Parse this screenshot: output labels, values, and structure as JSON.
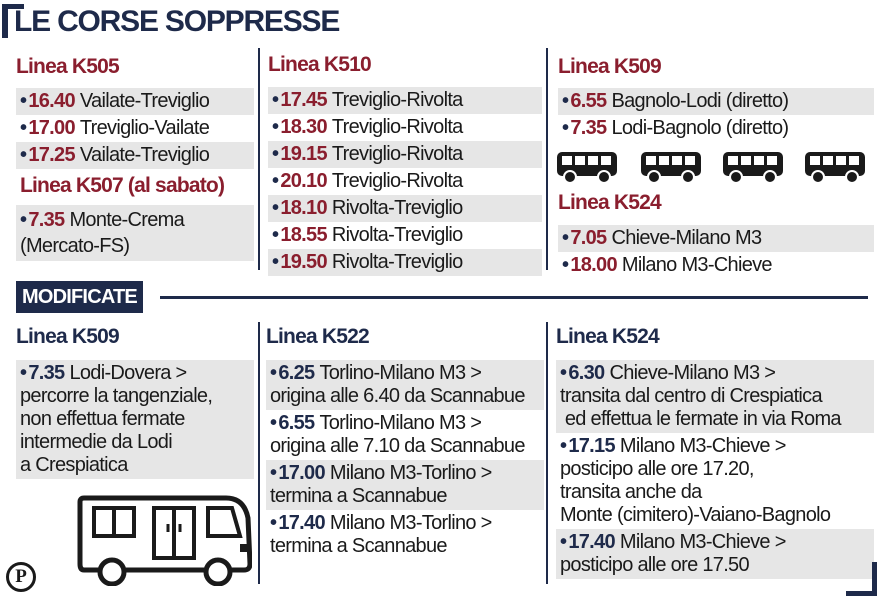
{
  "title": "LE CORSE SOPPRESSE",
  "colors": {
    "accent": "#8a1e2e",
    "navy": "#1e2a4a",
    "shade": "#e6e6e6"
  },
  "soppresse": {
    "k505": {
      "title": "Linea K505",
      "rows": [
        {
          "time": "16.40",
          "route": "Vailate-Treviglio"
        },
        {
          "time": "17.00",
          "route": "Treviglio-Vailate"
        },
        {
          "time": "17.25",
          "route": "Vailate-Treviglio"
        }
      ]
    },
    "k507": {
      "title": "Linea K507 (al sabato)",
      "time": "7.35",
      "route_line1": "Monte-Crema",
      "route_line2": "(Mercato-FS)"
    },
    "k510": {
      "title": "Linea K510",
      "rows": [
        {
          "time": "17.45",
          "route": "Treviglio-Rivolta"
        },
        {
          "time": "18.30",
          "route": "Treviglio-Rivolta"
        },
        {
          "time": "19.15",
          "route": "Treviglio-Rivolta"
        },
        {
          "time": "20.10",
          "route": "Treviglio-Rivolta"
        },
        {
          "time": "18.10",
          "route": "Rivolta-Treviglio"
        },
        {
          "time": "18.55",
          "route": "Rivolta-Treviglio"
        },
        {
          "time": "19.50",
          "route": "Rivolta-Treviglio"
        }
      ]
    },
    "k509": {
      "title": "Linea K509",
      "rows": [
        {
          "time": "6.55",
          "route": "Bagnolo-Lodi (diretto)"
        },
        {
          "time": "7.35",
          "route": "Lodi-Bagnolo (diretto)"
        }
      ]
    },
    "k524": {
      "title": "Linea K524",
      "rows": [
        {
          "time": "7.05",
          "route": "Chieve-Milano M3"
        },
        {
          "time": "18.00",
          "route": "Milano M3-Chieve"
        }
      ]
    }
  },
  "modificate_label": "MODIFICATE",
  "modificate": {
    "k509": {
      "title": "Linea K509",
      "time": "7.35",
      "lines": [
        "Lodi-Dovera >",
        "percorre la tangenziale,",
        "non effettua fermate",
        "intermedie da Lodi",
        "a Crespiatica"
      ]
    },
    "k522": {
      "title": "Linea K522",
      "entries": [
        {
          "time": "6.25",
          "l1": "Torlino-Milano M3 >",
          "l2": "origina alle 6.40 da Scannabue"
        },
        {
          "time": "6.55",
          "l1": "Torlino-Milano M3 >",
          "l2": "origina alle 7.10 da Scannabue"
        },
        {
          "time": "17.00",
          "l1": "Milano M3-Torlino >",
          "l2": "termina a Scannabue"
        },
        {
          "time": "17.40",
          "l1": "Milano M3-Torlino >",
          "l2": "termina a Scannabue"
        }
      ]
    },
    "k524": {
      "title": "Linea K524",
      "e1": {
        "time": "6.30",
        "l1": "Chieve-Milano M3 >",
        "l2": "transita dal centro di Crespiatica",
        "l3": " ed effettua le fermate in via Roma"
      },
      "e2": {
        "time": "17.15",
        "l1": "Milano M3-Chieve >",
        "l2": "posticipo alle ore 17.20,",
        "l3": "transita anche da",
        "l4": "Monte (cimitero)-Vaiano-Bagnolo"
      },
      "e3": {
        "time": "17.40",
        "l1": "Milano M3-Chieve >",
        "l2": "posticipo alle ore 17.50"
      }
    }
  },
  "logo": "P",
  "icons": {
    "bus": "bus-icon",
    "logo": "logo-icon"
  }
}
